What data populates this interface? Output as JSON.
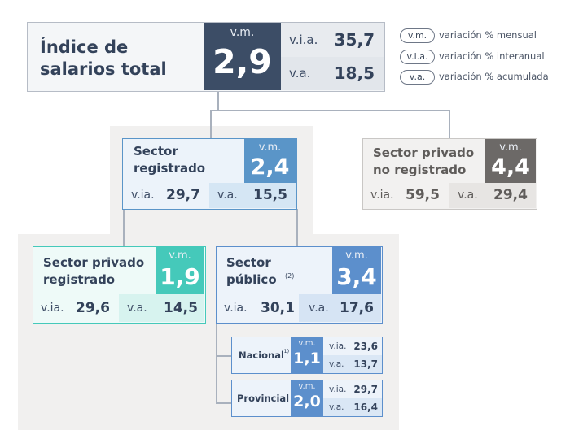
{
  "legend": {
    "items": [
      {
        "code": "v.m.",
        "text": "variación % mensual"
      },
      {
        "code": "v.i.a.",
        "text": "variación % interanual"
      },
      {
        "code": "v.a.",
        "text": "variación % acumulada"
      }
    ]
  },
  "labels": {
    "vm": "v.m.",
    "via": "v.i.a.",
    "va": "v.a.",
    "via_short": "v.ia."
  },
  "total": {
    "title": "Índice de salarios total",
    "vm": "2,9",
    "via": "35,7",
    "va": "18,5"
  },
  "registrado": {
    "title_line1": "Sector",
    "title_line2": "registrado",
    "vm": "2,4",
    "via": "29,7",
    "va": "15,5"
  },
  "no_registrado": {
    "title_line1": "Sector privado",
    "title_line2": "no registrado",
    "vm": "4,4",
    "via": "59,5",
    "va": "29,4"
  },
  "privado_registrado": {
    "title_line1": "Sector privado",
    "title_line2": "registrado",
    "vm": "1,9",
    "via": "29,6",
    "va": "14,5"
  },
  "publico": {
    "title_line1": "Sector",
    "title_line2": "público",
    "note": "(2)",
    "vm": "3,4",
    "via": "30,1",
    "va": "17,6"
  },
  "nacional": {
    "title": "Nacional",
    "note": "(1)",
    "vm": "1,1",
    "via": "23,6",
    "va": "13,7"
  },
  "provincial": {
    "title": "Provincial",
    "vm": "2,0",
    "via": "29,7",
    "va": "16,4"
  },
  "colors": {
    "total_dark": "#3c4d66",
    "registrado_blue": "#5a95c8",
    "registrado_tint": "#d5e6f4",
    "no_registrado_gray": "#6c6967",
    "privado_teal": "#45c9ba",
    "privado_tint": "#d7f3ef",
    "publico_blue": "#5c8fcc"
  }
}
